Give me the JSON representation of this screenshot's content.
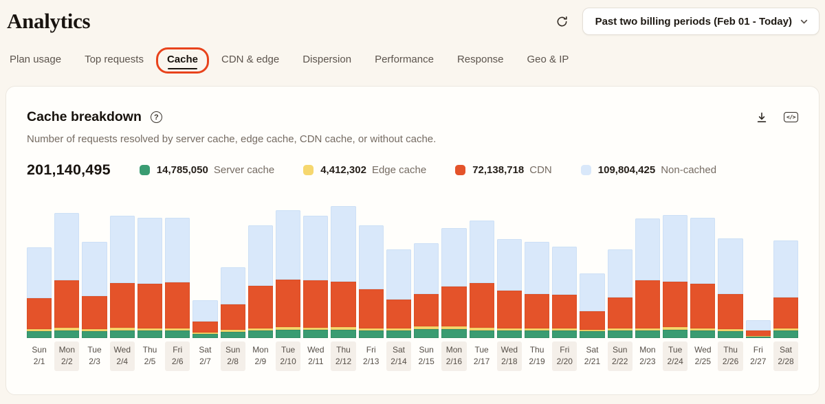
{
  "page": {
    "title": "Analytics"
  },
  "header": {
    "period_selector": {
      "value": "Past two billing periods (Feb 01 - Today)"
    }
  },
  "tabs": {
    "items": [
      {
        "label": "Plan usage"
      },
      {
        "label": "Top requests"
      },
      {
        "label": "Cache",
        "active": true,
        "annotated": true
      },
      {
        "label": "CDN & edge"
      },
      {
        "label": "Dispersion"
      },
      {
        "label": "Performance"
      },
      {
        "label": "Response"
      },
      {
        "label": "Geo & IP"
      }
    ],
    "annotation_color": "#e8431c"
  },
  "card": {
    "title": "Cache breakdown",
    "subtitle": "Number of requests resolved by server cache, edge cache, CDN cache, or without cache.",
    "total": "201,140,495",
    "icons": {
      "help": "?",
      "code": "</>"
    },
    "legend": [
      {
        "value": "14,785,050",
        "label": "Server cache",
        "color": "#3a9c72"
      },
      {
        "value": "4,412,302",
        "label": "Edge cache",
        "color": "#f6d76e"
      },
      {
        "value": "72,138,718",
        "label": "CDN",
        "color": "#e4532a"
      },
      {
        "value": "109,804,425",
        "label": "Non-cached",
        "color": "#d9e8fa"
      }
    ]
  },
  "chart_data": {
    "type": "bar",
    "stacked": true,
    "title": "Cache breakdown",
    "total_value": 201140495,
    "grid": false,
    "legend_position": "top",
    "day_of_week": [
      "Sun",
      "Mon",
      "Tue",
      "Wed",
      "Thu",
      "Fri",
      "Sat",
      "Sun",
      "Mon",
      "Tue",
      "Wed",
      "Thu",
      "Fri",
      "Sat",
      "Sun",
      "Mon",
      "Tue",
      "Wed",
      "Thu",
      "Fri",
      "Sat",
      "Sun",
      "Mon",
      "Tue",
      "Wed",
      "Thu",
      "Fri",
      "Sat"
    ],
    "dates": [
      "2/1",
      "2/2",
      "2/3",
      "2/4",
      "2/5",
      "2/6",
      "2/7",
      "2/8",
      "2/9",
      "2/10",
      "2/11",
      "2/12",
      "2/13",
      "2/14",
      "2/15",
      "2/16",
      "2/17",
      "2/18",
      "2/19",
      "2/20",
      "2/21",
      "2/22",
      "2/23",
      "2/24",
      "2/25",
      "2/26",
      "2/27",
      "2/28"
    ],
    "series": [
      {
        "name": "Server cache",
        "color": "#3a9c72",
        "edge_color": "#2f8560",
        "values": [
          494667,
          549630,
          494667,
          549630,
          549630,
          549630,
          274815,
          439704,
          549630,
          604593,
          604593,
          604593,
          549630,
          549630,
          659556,
          659556,
          549630,
          549630,
          549630,
          549630,
          494667,
          549630,
          549630,
          604593,
          549630,
          494667,
          109926,
          549633
        ]
      },
      {
        "name": "Edge cache",
        "color": "#f6d76e",
        "edge_color": "#e9c55c",
        "values": [
          153918,
          205224,
          153918,
          205224,
          153918,
          153918,
          102612,
          153918,
          153918,
          205224,
          153918,
          205224,
          153918,
          153918,
          153918,
          153918,
          205224,
          153918,
          153918,
          153918,
          102612,
          153918,
          153918,
          205224,
          153918,
          153918,
          51306,
          153904
        ]
      },
      {
        "name": "CDN",
        "color": "#e4532a",
        "edge_color": "#d44a21",
        "values": [
          2215550,
          3367636,
          2348483,
          3146081,
          3190392,
          3279014,
          797598,
          1816751,
          3013148,
          3367636,
          3367636,
          3190392,
          2791593,
          2038306,
          2304172,
          2880215,
          3146081,
          2658660,
          2437105,
          2392794,
          1329330,
          2171239,
          3411947,
          3234703,
          3190392,
          2481416,
          398799,
          2171649
        ]
      },
      {
        "name": "Non-cached",
        "color": "#d9e8fa",
        "edge_color": "#c5daf3",
        "values": [
          3603460,
          4787454,
          3860850,
          4838932,
          4684498,
          4581542,
          1544340,
          2625378,
          4324152,
          4941888,
          4581542,
          5405190,
          4530064,
          3603460,
          3654938,
          4169718,
          4478586,
          3706416,
          3706416,
          3449026,
          2676856,
          3449026,
          4427108,
          4735976,
          4684498,
          3963806,
          720692,
          4068613
        ]
      }
    ]
  }
}
